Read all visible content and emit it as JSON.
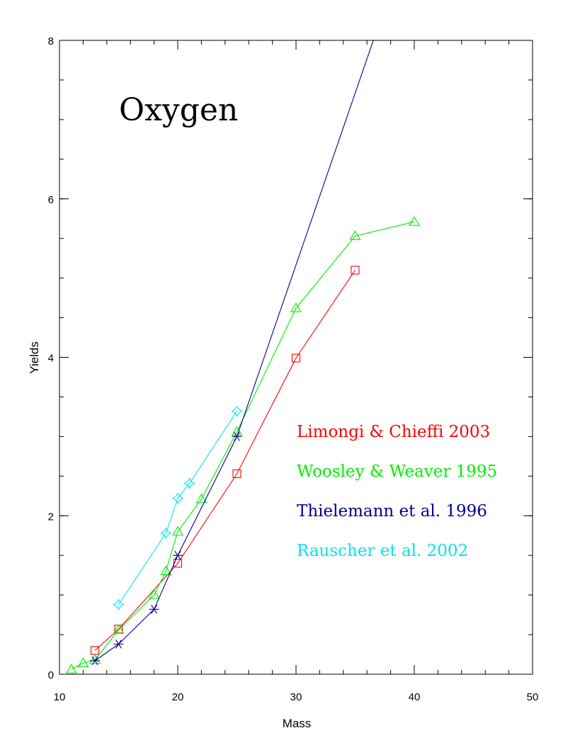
{
  "chart_data": {
    "type": "line",
    "title": "Oxygen",
    "xlabel": "Mass",
    "ylabel": "Yields",
    "xlim": [
      10,
      50
    ],
    "ylim": [
      0,
      8
    ],
    "x_ticks": [
      10,
      20,
      30,
      40,
      50
    ],
    "y_ticks": [
      0,
      2,
      4,
      6,
      8
    ],
    "x_tick_labels": [
      "10",
      "20",
      "30",
      "40",
      "50"
    ],
    "y_tick_labels": [
      "0",
      "2",
      "4",
      "6",
      "8"
    ],
    "x_minor_step": 2,
    "y_minor_step": 0.5,
    "grid": false,
    "legend_position": "right",
    "series": [
      {
        "name": "Limongi & Chieffi 2003",
        "color": "#ff0000",
        "marker": "square",
        "x": [
          13,
          15,
          20,
          25,
          30,
          35
        ],
        "y": [
          0.3,
          0.57,
          1.4,
          2.53,
          3.99,
          5.1
        ]
      },
      {
        "name": "Woosley & Weaver 1995",
        "color": "#00ee00",
        "marker": "triangle",
        "x": [
          11,
          12,
          13,
          15,
          18,
          19,
          20,
          22,
          25,
          30,
          35,
          40
        ],
        "y": [
          0.06,
          0.14,
          0.18,
          0.56,
          1.0,
          1.3,
          1.8,
          2.21,
          3.06,
          4.62,
          5.53,
          5.71
        ]
      },
      {
        "name": "Thielemann et al. 1996",
        "color": "#00008b",
        "marker": "asterisk",
        "x": [
          13,
          15,
          18,
          20,
          25,
          40
        ],
        "y": [
          0.17,
          0.38,
          0.82,
          1.5,
          3.0,
          9.5
        ]
      },
      {
        "name": "Rauscher et al. 2002",
        "color": "#00e5ee",
        "marker": "star",
        "x": [
          15,
          19,
          20,
          21,
          25
        ],
        "y": [
          0.88,
          1.78,
          2.22,
          2.41,
          3.32
        ]
      }
    ]
  }
}
